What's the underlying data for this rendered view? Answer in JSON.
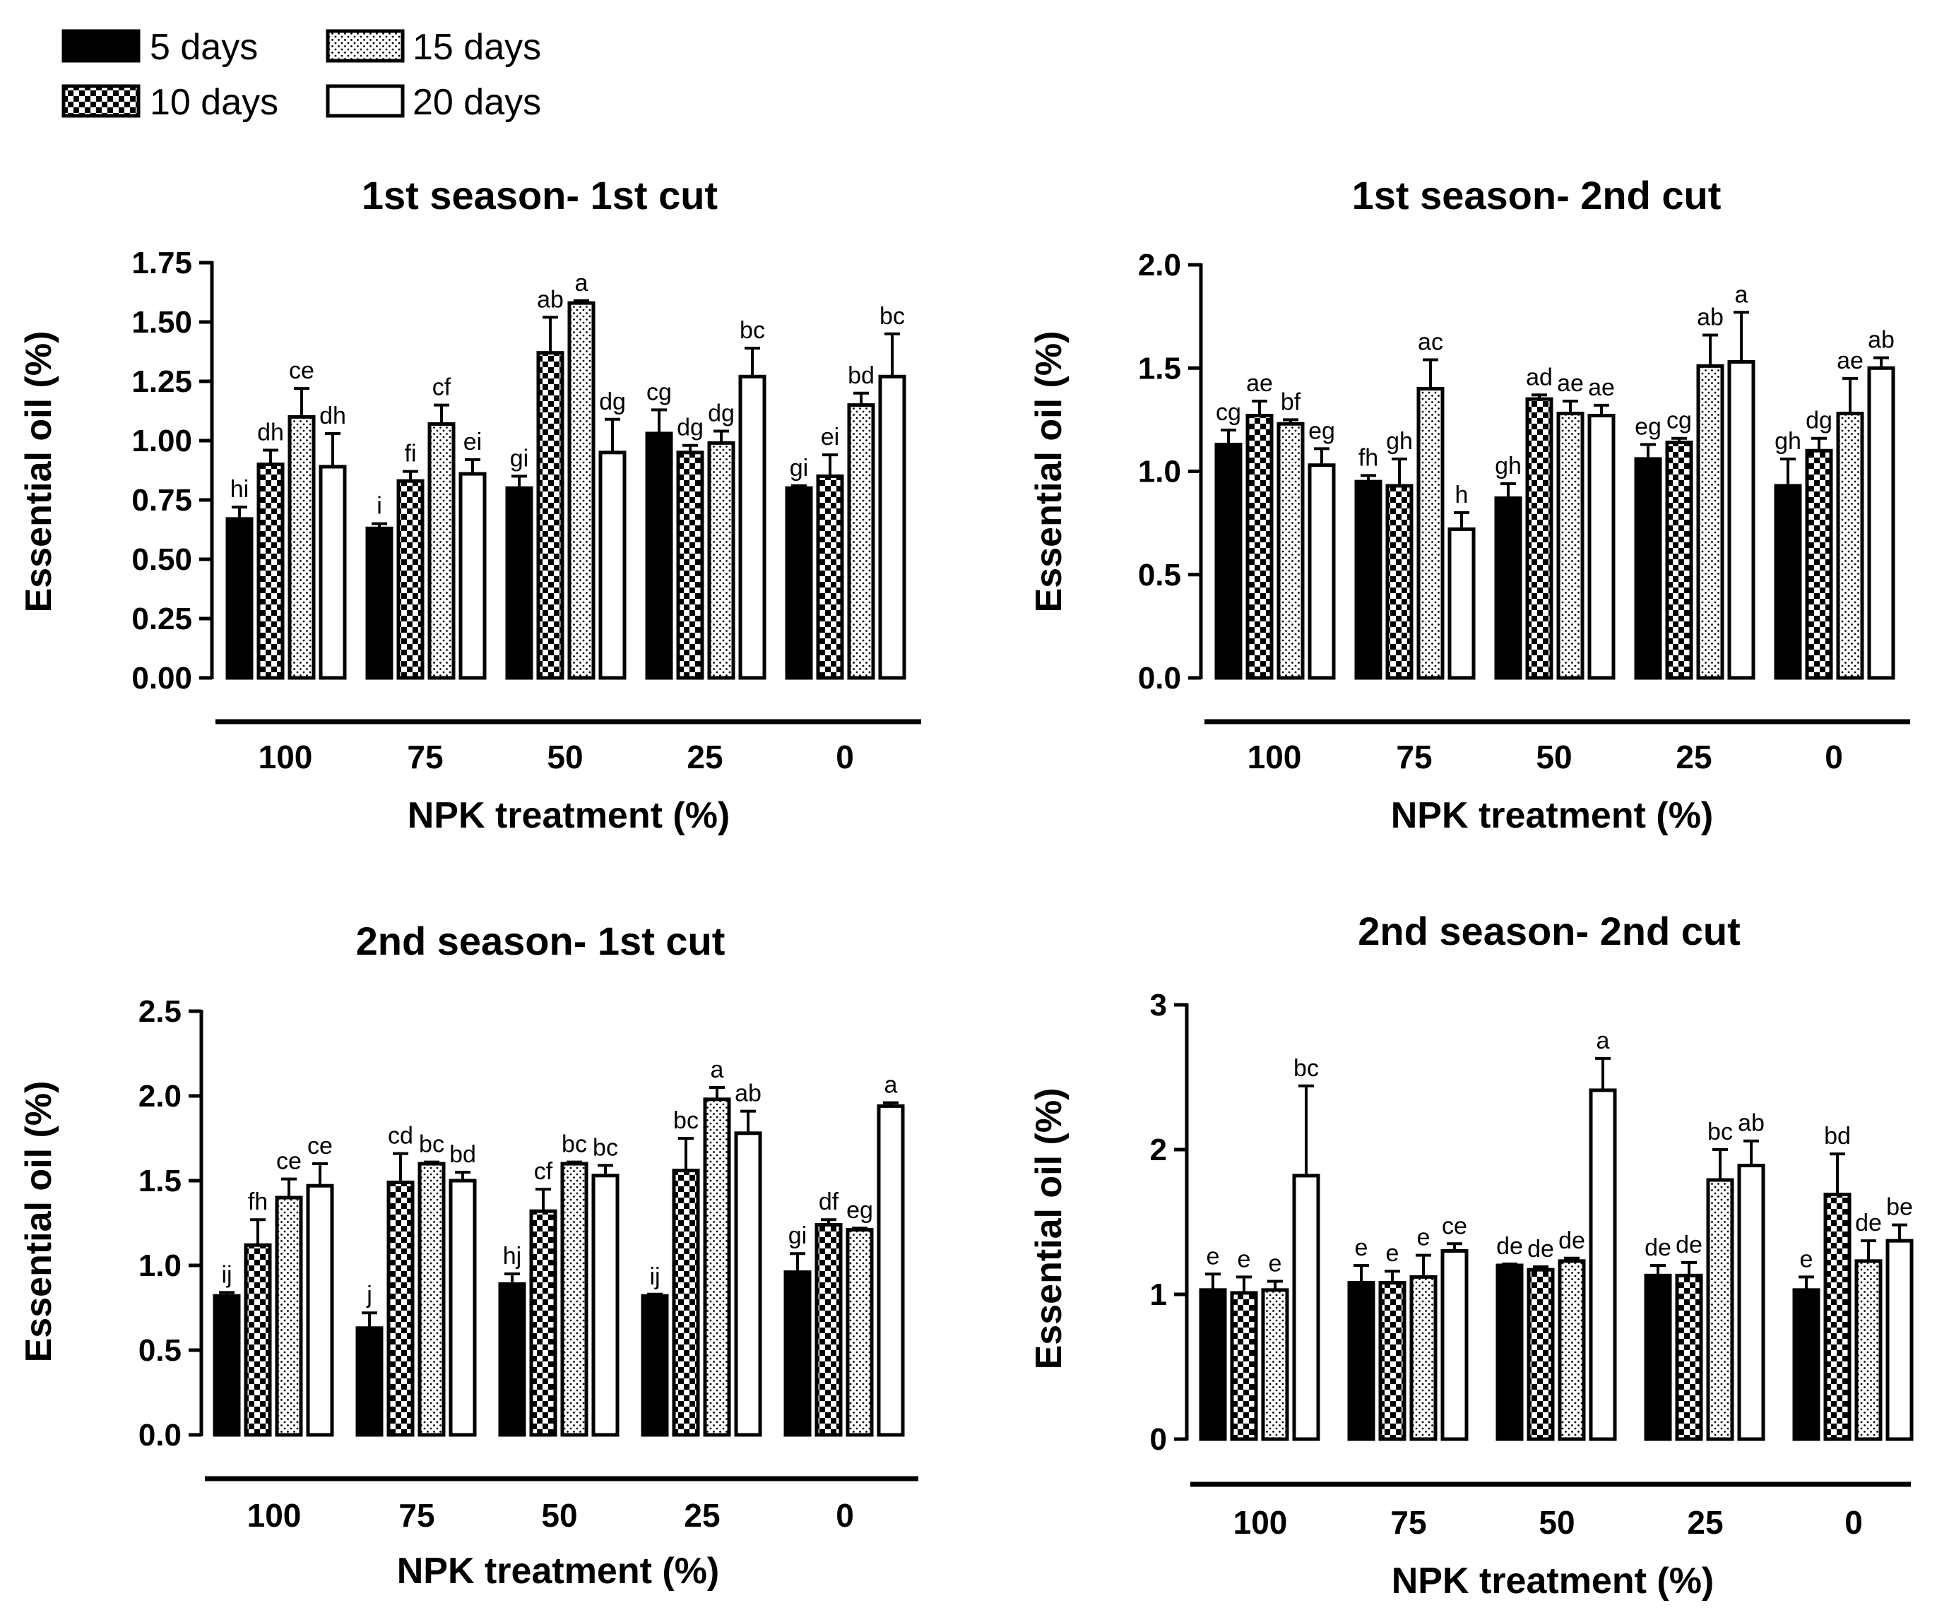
{
  "legend": {
    "items": [
      {
        "label": "5 days",
        "pattern": "solid"
      },
      {
        "label": "15 days",
        "pattern": "dots"
      },
      {
        "label": "10 days",
        "pattern": "checker"
      },
      {
        "label": "20 days",
        "pattern": "open"
      }
    ]
  },
  "colors": {
    "ink": "#000000",
    "background": "#ffffff"
  },
  "chart_data": [
    {
      "type": "bar",
      "title": "1st season- 1st cut",
      "xlabel": "NPK treatment (%)",
      "ylabel": "Essential oil (%)",
      "ylim": [
        0,
        1.75
      ],
      "yticks": [
        0,
        0.25,
        0.5,
        0.75,
        1.0,
        1.25,
        1.5,
        1.75
      ],
      "ytick_labels": [
        "0.00",
        "0.25",
        "0.50",
        "0.75",
        "1.00",
        "1.25",
        "1.50",
        "1.75"
      ],
      "categories": [
        "100",
        "75",
        "50",
        "25",
        "0"
      ],
      "series": [
        {
          "name": "5 days",
          "values": [
            0.67,
            0.63,
            0.8,
            1.03,
            0.8
          ],
          "errors": [
            0.05,
            0.02,
            0.05,
            0.1,
            0.01
          ],
          "letters": [
            "hi",
            "i",
            "gi",
            "cg",
            "gi"
          ]
        },
        {
          "name": "10 days",
          "values": [
            0.9,
            0.83,
            1.37,
            0.95,
            0.85
          ],
          "errors": [
            0.06,
            0.04,
            0.15,
            0.03,
            0.09
          ],
          "letters": [
            "dh",
            "fi",
            "ab",
            "dg",
            "ei"
          ]
        },
        {
          "name": "15 days",
          "values": [
            1.1,
            1.07,
            1.58,
            0.99,
            1.15
          ],
          "errors": [
            0.12,
            0.08,
            0.01,
            0.05,
            0.05
          ],
          "letters": [
            "ce",
            "cf",
            "a",
            "dg",
            "bd"
          ]
        },
        {
          "name": "20 days",
          "values": [
            0.89,
            0.86,
            0.95,
            1.27,
            1.27
          ],
          "errors": [
            0.14,
            0.06,
            0.14,
            0.12,
            0.18
          ],
          "letters": [
            "dh",
            "ei",
            "dg",
            "bc",
            "bc"
          ]
        }
      ]
    },
    {
      "type": "bar",
      "title": "1st season- 2nd cut",
      "xlabel": "NPK treatment (%)",
      "ylabel": "Essential oil (%)",
      "ylim": [
        0,
        2.0
      ],
      "yticks": [
        0,
        0.5,
        1.0,
        1.5,
        2.0
      ],
      "ytick_labels": [
        "0.0",
        "0.5",
        "1.0",
        "1.5",
        "2.0"
      ],
      "categories": [
        "100",
        "75",
        "50",
        "25",
        "0"
      ],
      "series": [
        {
          "name": "5 days",
          "values": [
            1.13,
            0.95,
            0.87,
            1.06,
            0.93
          ],
          "errors": [
            0.07,
            0.03,
            0.07,
            0.07,
            0.13
          ],
          "letters": [
            "cg",
            "fh",
            "gh",
            "eg",
            "gh"
          ]
        },
        {
          "name": "10 days",
          "values": [
            1.27,
            0.93,
            1.35,
            1.14,
            1.1
          ],
          "errors": [
            0.07,
            0.13,
            0.02,
            0.02,
            0.06
          ],
          "letters": [
            "ae",
            "gh",
            "ad",
            "cg",
            "dg"
          ]
        },
        {
          "name": "15 days",
          "values": [
            1.23,
            1.4,
            1.28,
            1.51,
            1.28
          ],
          "errors": [
            0.02,
            0.14,
            0.06,
            0.15,
            0.17
          ],
          "letters": [
            "bf",
            "ac",
            "ae",
            "ab",
            "ae"
          ]
        },
        {
          "name": "20 days",
          "values": [
            1.03,
            0.72,
            1.27,
            1.53,
            1.5
          ],
          "errors": [
            0.08,
            0.08,
            0.05,
            0.24,
            0.05
          ],
          "letters": [
            "eg",
            "h",
            "ae",
            "a",
            "ab"
          ]
        }
      ]
    },
    {
      "type": "bar",
      "title": "2nd season- 1st cut",
      "xlabel": "NPK treatment (%)",
      "ylabel": "Essential oil (%)",
      "ylim": [
        0,
        2.5
      ],
      "yticks": [
        0,
        0.5,
        1.0,
        1.5,
        2.0,
        2.5
      ],
      "ytick_labels": [
        "0.0",
        "0.5",
        "1.0",
        "1.5",
        "2.0",
        "2.5"
      ],
      "categories": [
        "100",
        "75",
        "50",
        "25",
        "0"
      ],
      "series": [
        {
          "name": "5 days",
          "values": [
            0.82,
            0.63,
            0.89,
            0.82,
            0.96
          ],
          "errors": [
            0.02,
            0.09,
            0.06,
            0.01,
            0.11
          ],
          "letters": [
            "ij",
            "j",
            "hj",
            "ij",
            "gi"
          ]
        },
        {
          "name": "10 days",
          "values": [
            1.12,
            1.49,
            1.32,
            1.56,
            1.24
          ],
          "errors": [
            0.15,
            0.17,
            0.13,
            0.19,
            0.03
          ],
          "letters": [
            "fh",
            "cd",
            "cf",
            "bc",
            "df"
          ]
        },
        {
          "name": "15 days",
          "values": [
            1.4,
            1.6,
            1.6,
            1.98,
            1.21
          ],
          "errors": [
            0.11,
            0.01,
            0.01,
            0.07,
            0.01
          ],
          "letters": [
            "ce",
            "bc",
            "bc",
            "a",
            "eg"
          ]
        },
        {
          "name": "20 days",
          "values": [
            1.47,
            1.5,
            1.53,
            1.78,
            1.94
          ],
          "errors": [
            0.13,
            0.05,
            0.06,
            0.13,
            0.02
          ],
          "letters": [
            "ce",
            "bd",
            "bc",
            "ab",
            "a"
          ]
        }
      ]
    },
    {
      "type": "bar",
      "title": "2nd season- 2nd cut",
      "xlabel": "NPK treatment (%)",
      "ylabel": "Essential oil (%)",
      "ylim": [
        0,
        3
      ],
      "yticks": [
        0,
        1,
        2,
        3
      ],
      "ytick_labels": [
        "0",
        "1",
        "2",
        "3"
      ],
      "categories": [
        "100",
        "75",
        "50",
        "25",
        "0"
      ],
      "series": [
        {
          "name": "5 days",
          "values": [
            1.03,
            1.08,
            1.2,
            1.13,
            1.03
          ],
          "errors": [
            0.11,
            0.12,
            0.01,
            0.07,
            0.09
          ],
          "letters": [
            "e",
            "e",
            "de",
            "de",
            "e"
          ]
        },
        {
          "name": "10 days",
          "values": [
            1.01,
            1.08,
            1.17,
            1.13,
            1.69
          ],
          "errors": [
            0.11,
            0.08,
            0.02,
            0.09,
            0.28
          ],
          "letters": [
            "e",
            "e",
            "de",
            "de",
            "bd"
          ]
        },
        {
          "name": "15 days",
          "values": [
            1.03,
            1.12,
            1.23,
            1.79,
            1.23
          ],
          "errors": [
            0.06,
            0.15,
            0.02,
            0.21,
            0.14
          ],
          "letters": [
            "e",
            "e",
            "de",
            "bc",
            "de"
          ]
        },
        {
          "name": "20 days",
          "values": [
            1.82,
            1.3,
            2.41,
            1.89,
            1.37
          ],
          "errors": [
            0.62,
            0.05,
            0.22,
            0.17,
            0.11
          ],
          "letters": [
            "bc",
            "ce",
            "a",
            "ab",
            "be"
          ]
        }
      ]
    }
  ]
}
